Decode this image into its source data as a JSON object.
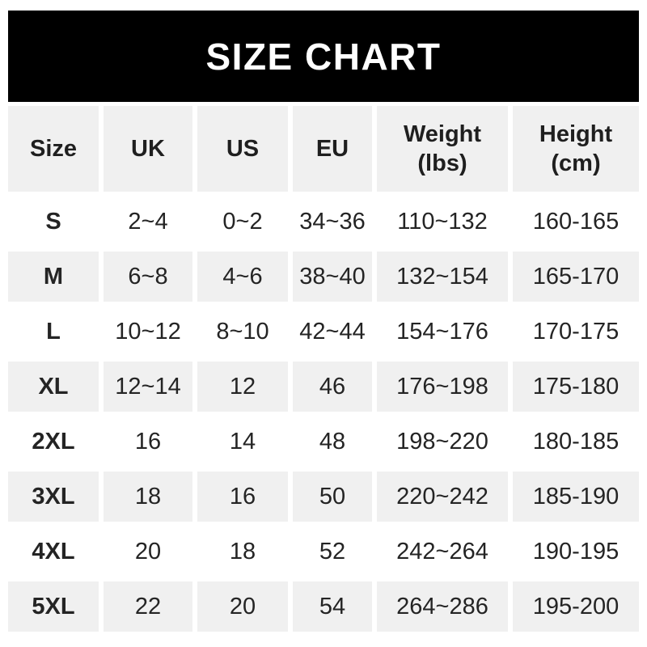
{
  "banner": {
    "title": "SIZE CHART"
  },
  "colors": {
    "banner_bg": "#000000",
    "banner_text": "#ffffff",
    "row_alt_bg": "#f0f0f0",
    "text": "#1f1f1f",
    "page_bg": "#ffffff"
  },
  "chart_data": {
    "type": "table",
    "title": "SIZE CHART",
    "columns": [
      "Size",
      "UK",
      "US",
      "EU",
      "Weight (lbs)",
      "Height (cm)"
    ],
    "rows": [
      [
        "S",
        "2~4",
        "0~2",
        "34~36",
        "110~132",
        "160-165"
      ],
      [
        "M",
        "6~8",
        "4~6",
        "38~40",
        "132~154",
        "165-170"
      ],
      [
        "L",
        "10~12",
        "8~10",
        "42~44",
        "154~176",
        "170-175"
      ],
      [
        "XL",
        "12~14",
        "12",
        "46",
        "176~198",
        "175-180"
      ],
      [
        "2XL",
        "16",
        "14",
        "48",
        "198~220",
        "180-185"
      ],
      [
        "3XL",
        "18",
        "16",
        "50",
        "220~242",
        "185-190"
      ],
      [
        "4XL",
        "20",
        "18",
        "52",
        "242~264",
        "190-195"
      ],
      [
        "5XL",
        "22",
        "20",
        "54",
        "264~286",
        "195-200"
      ]
    ],
    "layout": {
      "header_background": "#f0f0f0",
      "alternating_rows": "odd data rows white, even data rows #f0f0f0",
      "grid": "white gaps between cells"
    }
  }
}
